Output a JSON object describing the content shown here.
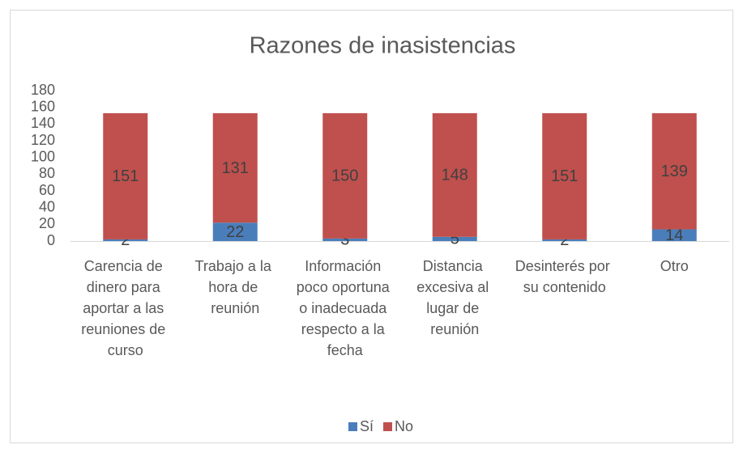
{
  "chart_data": {
    "type": "stacked_bar",
    "title": "Razones de inasistencias",
    "categories": [
      "Carencia de dinero para aportar a las reuniones de curso",
      "Trabajo a la hora de reunión",
      "Información poco oportuna o inadecuada respecto a la fecha",
      "Distancia excesiva al lugar de reunión",
      "Desinterés por su contenido",
      "Otro"
    ],
    "series": [
      {
        "name": "Sí",
        "color": "#4a7ebb",
        "values": [
          2,
          22,
          3,
          5,
          2,
          14
        ]
      },
      {
        "name": "No",
        "color": "#c0504d",
        "values": [
          151,
          131,
          150,
          148,
          151,
          139
        ]
      }
    ],
    "ylim": [
      0,
      180
    ],
    "yticks": [
      0,
      20,
      40,
      60,
      80,
      100,
      120,
      140,
      160,
      180
    ],
    "grid": false,
    "legend": "bottom"
  }
}
